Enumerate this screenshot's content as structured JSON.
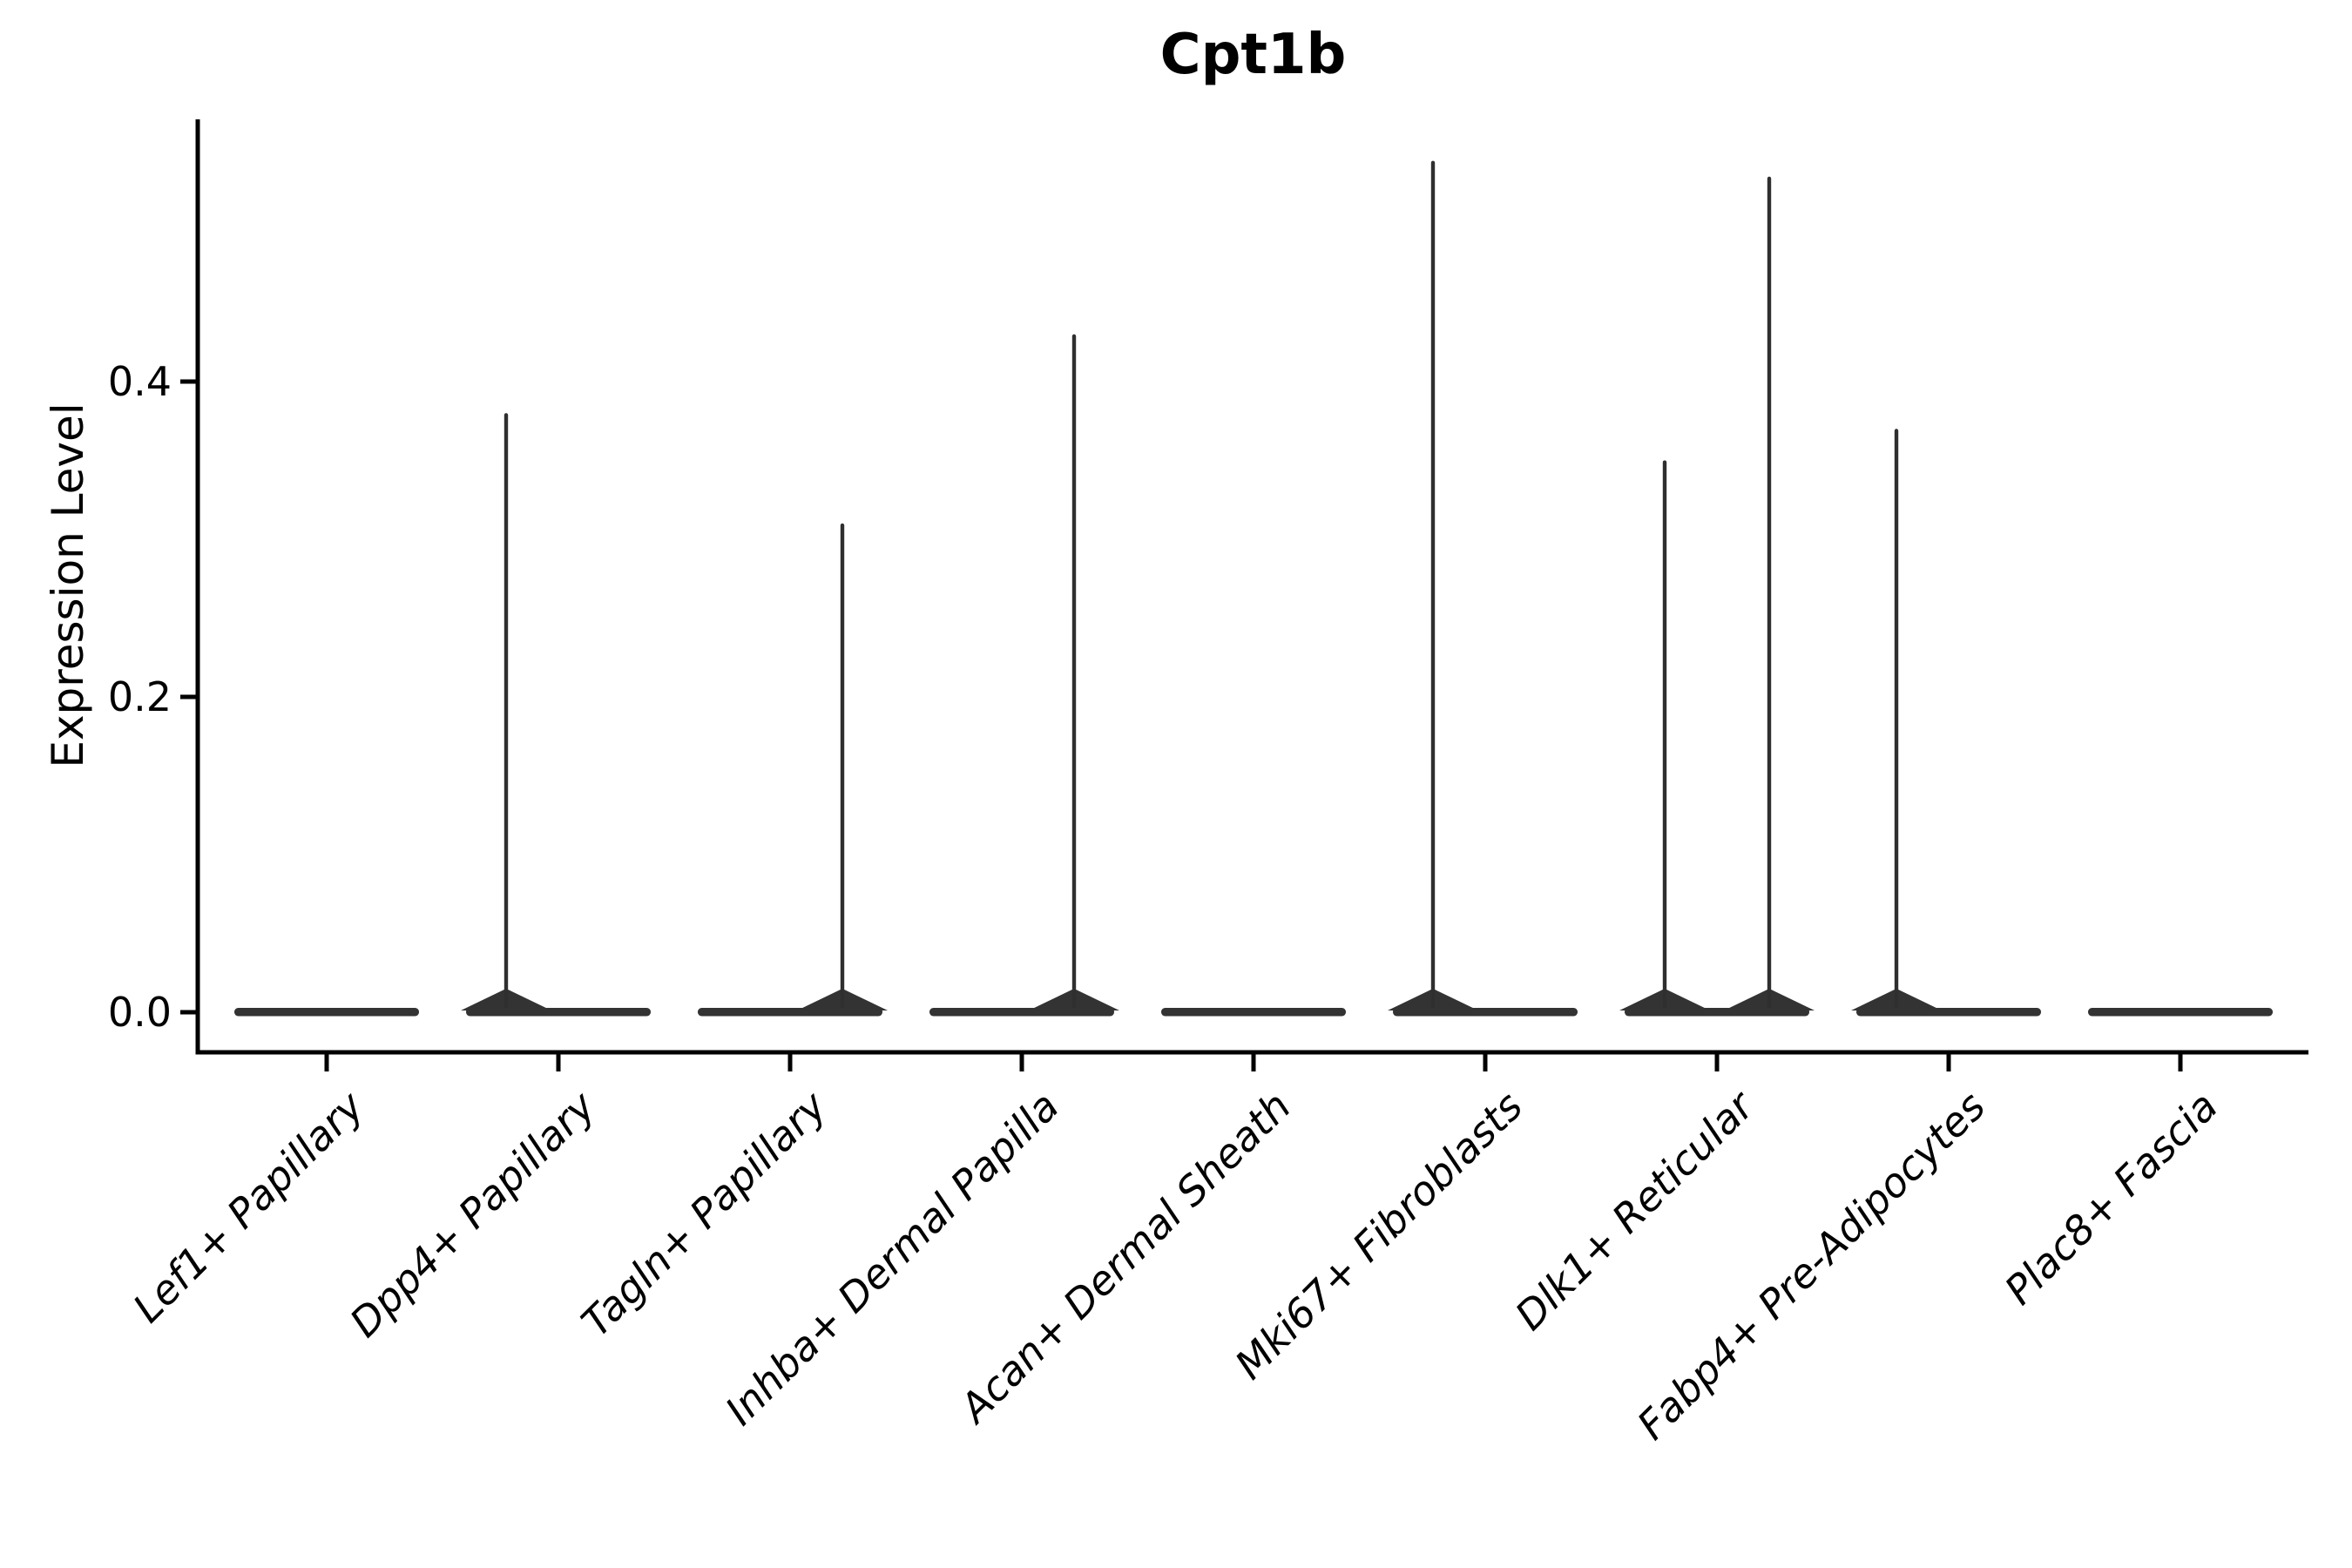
{
  "chart_data": {
    "type": "violin",
    "title": "Cpt1b",
    "ylabel": "Expression Level",
    "xlabel": "",
    "ylim": [
      -0.025,
      0.566
    ],
    "grid": false,
    "legend": "none",
    "yticks": [
      {
        "value": 0.0,
        "label": "0.0"
      },
      {
        "value": 0.2,
        "label": "0.2"
      },
      {
        "value": 0.4,
        "label": "0.4"
      }
    ],
    "categories": [
      "Lef1+ Papillary",
      "Dpp4+ Papillary",
      "Tagln+ Papillary",
      "Inhba+ Dermal Papilla",
      "Acan+ Dermal Sheath",
      "Mki67+ Fibroblasts",
      "Dlk1+ Reticular",
      "Fabp4+ Pre-Adipocytes",
      "Plac8+ Fascia"
    ],
    "violins": [
      {
        "category": "Lef1+ Papillary",
        "baseline_value": 0.0,
        "spikes": []
      },
      {
        "category": "Dpp4+ Papillary",
        "baseline_value": 0.0,
        "spikes": [
          {
            "side": -1,
            "value": 0.38
          }
        ]
      },
      {
        "category": "Tagln+ Papillary",
        "baseline_value": 0.0,
        "spikes": [
          {
            "side": 1,
            "value": 0.31
          }
        ]
      },
      {
        "category": "Inhba+ Dermal Papilla",
        "baseline_value": 0.0,
        "spikes": [
          {
            "side": 1,
            "value": 0.43
          }
        ]
      },
      {
        "category": "Acan+ Dermal Sheath",
        "baseline_value": 0.0,
        "spikes": []
      },
      {
        "category": "Mki67+ Fibroblasts",
        "baseline_value": 0.0,
        "spikes": [
          {
            "side": -1,
            "value": 0.54
          }
        ]
      },
      {
        "category": "Dlk1+ Reticular",
        "baseline_value": 0.0,
        "spikes": [
          {
            "side": -1,
            "value": 0.35
          },
          {
            "side": 1,
            "value": 0.53
          }
        ]
      },
      {
        "category": "Fabp4+ Pre-Adipocytes",
        "baseline_value": 0.0,
        "spikes": [
          {
            "side": -1,
            "value": 0.37
          }
        ]
      },
      {
        "category": "Plac8+ Fascia",
        "baseline_value": 0.0,
        "spikes": []
      }
    ],
    "style": {
      "violin_color": "#333333",
      "spike_color": "#2f2f2f",
      "axis_color": "#000000",
      "background": "#ffffff"
    }
  }
}
